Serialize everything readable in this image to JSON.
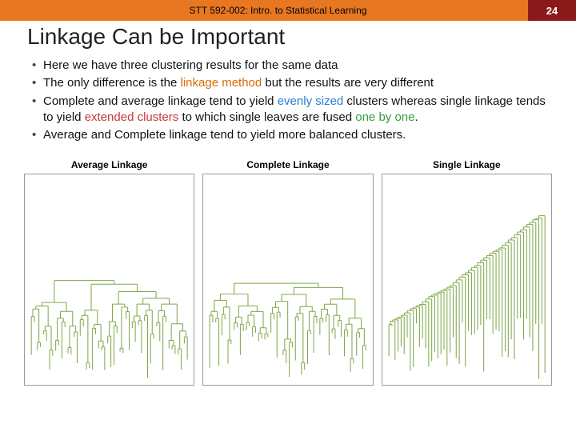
{
  "header": {
    "course": "STT 592-002: Intro. to Statistical Learning",
    "page_number": "24",
    "bar_color": "#e87722",
    "page_bg_color": "#8a1a1a"
  },
  "title": "Linkage Can be Important",
  "bullets": [
    {
      "segments": [
        {
          "t": "Here we have three clustering results for the same data"
        }
      ]
    },
    {
      "segments": [
        {
          "t": "The only difference is the "
        },
        {
          "t": "linkage method",
          "cls": "hl-orange"
        },
        {
          "t": " but the results are very different"
        }
      ]
    },
    {
      "segments": [
        {
          "t": "Complete and average linkage tend to yield "
        },
        {
          "t": "evenly sized",
          "cls": "hl-blue"
        },
        {
          "t": " clusters whereas single linkage tends to yield "
        },
        {
          "t": "extended clusters",
          "cls": "hl-red"
        },
        {
          "t": " to which single leaves are fused "
        },
        {
          "t": "one by one",
          "cls": "hl-green"
        },
        {
          "t": "."
        }
      ]
    },
    {
      "segments": [
        {
          "t": "Average and Complete linkage tend to yield more balanced clusters."
        }
      ]
    }
  ],
  "panels": [
    {
      "title": "Average Linkage",
      "kind": "average"
    },
    {
      "title": "Complete Linkage",
      "kind": "complete"
    },
    {
      "title": "Single Linkage",
      "kind": "single"
    }
  ],
  "dendro_style": {
    "line_color": "#7fa84a",
    "line_width": 1,
    "box_border": "#999999",
    "leaf_band_min_y": 180,
    "leaf_band_max_y": 258
  }
}
